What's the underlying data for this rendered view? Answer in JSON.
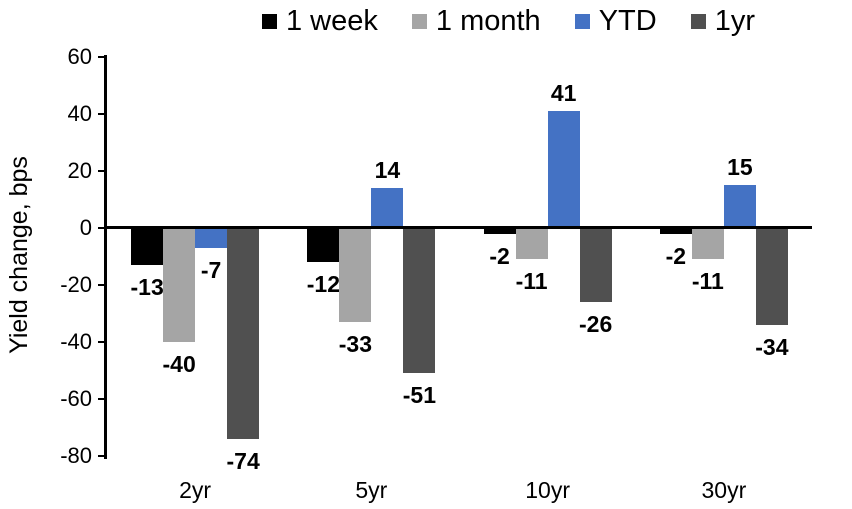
{
  "chart_data": {
    "type": "bar",
    "title": "",
    "ylabel": "Yield change, bps",
    "xlabel": "",
    "categories": [
      "2yr",
      "5yr",
      "10yr",
      "30yr"
    ],
    "series": [
      {
        "name": "1 week",
        "color": "#000000",
        "values": [
          -13,
          -12,
          -2,
          -2
        ]
      },
      {
        "name": "1 month",
        "color": "#A5A5A5",
        "values": [
          -40,
          -33,
          -11,
          -11
        ]
      },
      {
        "name": "YTD",
        "color": "#4472C4",
        "values": [
          -7,
          14,
          41,
          15
        ]
      },
      {
        "name": "1yr",
        "color": "#505050",
        "values": [
          -74,
          -51,
          -26,
          -34
        ]
      }
    ],
    "ylim": [
      -80,
      60
    ],
    "yticks": [
      60,
      40,
      20,
      0,
      -20,
      -40,
      -60,
      -80
    ],
    "grid": false,
    "legend_position": "top",
    "data_labels": "outside-end",
    "axis_color": "#000000"
  }
}
